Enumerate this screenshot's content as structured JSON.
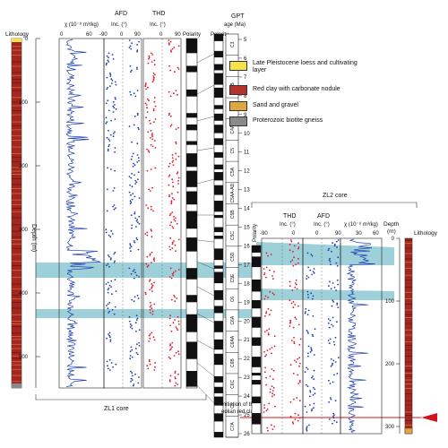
{
  "zl1": {
    "lithology_label": "Lithology",
    "depth_axis_label": "Depth (m)",
    "depth_ticks": [
      "0",
      "100",
      "200",
      "300",
      "400",
      "500"
    ],
    "chi_label": "χ (10⁻⁸ m³/kg)",
    "chi_ticks": [
      "0",
      "60"
    ],
    "afd_label": "AFD",
    "afd_inc_label": "Inc. (°)",
    "afd_ticks": [
      "-90",
      "0",
      "90"
    ],
    "thd_label": "THD",
    "thd_inc_label": "Inc. (°)",
    "thd_ticks": [
      "0",
      "90"
    ],
    "polarity_label": "Polarity",
    "core_label": "ZL1 core"
  },
  "gpts": {
    "title_line1": "GPT",
    "title_line2": "age (Ma)",
    "age_ticks": [
      "5",
      "6",
      "7",
      "8",
      "9",
      "10",
      "11",
      "12",
      "13",
      "14",
      "15",
      "16",
      "17",
      "18",
      "19",
      "20",
      "21",
      "22",
      "23",
      "24",
      "25",
      "26"
    ],
    "chrons": [
      "C3",
      "C3A",
      "C3B",
      "C4",
      "C4A",
      "C5",
      "C5A",
      "C5AA-AD",
      "C5B",
      "C5C",
      "C5D",
      "C5E",
      "C6",
      "C6A",
      "C6AA",
      "C6B",
      "C6C",
      "C7",
      "C7A"
    ]
  },
  "zl2": {
    "core_label": "ZL2 core",
    "thd_label": "THD",
    "thd_inc_label": "Inc. (°)",
    "thd_ticks": [
      "-90",
      "0"
    ],
    "afd_label": "AFD",
    "afd_inc_label": "Inc. (°)",
    "afd_ticks": [
      "0",
      "90"
    ],
    "chi_label": "χ (10⁻⁸ m³/kg)",
    "chi_ticks": [
      "30",
      "60"
    ],
    "depth_label_line1": "Depth",
    "depth_label_line2": "(m)",
    "depth_ticks": [
      "0",
      "100",
      "200",
      "300"
    ],
    "lithology_label": "Lithology",
    "polarity_label": "Polarity"
  },
  "legend": [
    {
      "label": "Late Pleistocene loess and cultivating layer",
      "color": "#f3e24a"
    },
    {
      "label": "Red clay with carbonate nodule",
      "color": "#b8322c"
    },
    {
      "label": "Sand and gravel",
      "color": "#e0a640"
    },
    {
      "label": "Proterozoic biotite gneiss",
      "color": "#8a8a8a"
    }
  ],
  "annotation": "Initiation of the eolian red clay",
  "colors": {
    "afd_series": "#1f3fb0",
    "thd_series": "#e01a2a",
    "chi_series": "#1f3fb0",
    "correlation_band": "#8cc8d2",
    "red_clay": "#a42620",
    "annotation_arrow": "#d4141c"
  }
}
